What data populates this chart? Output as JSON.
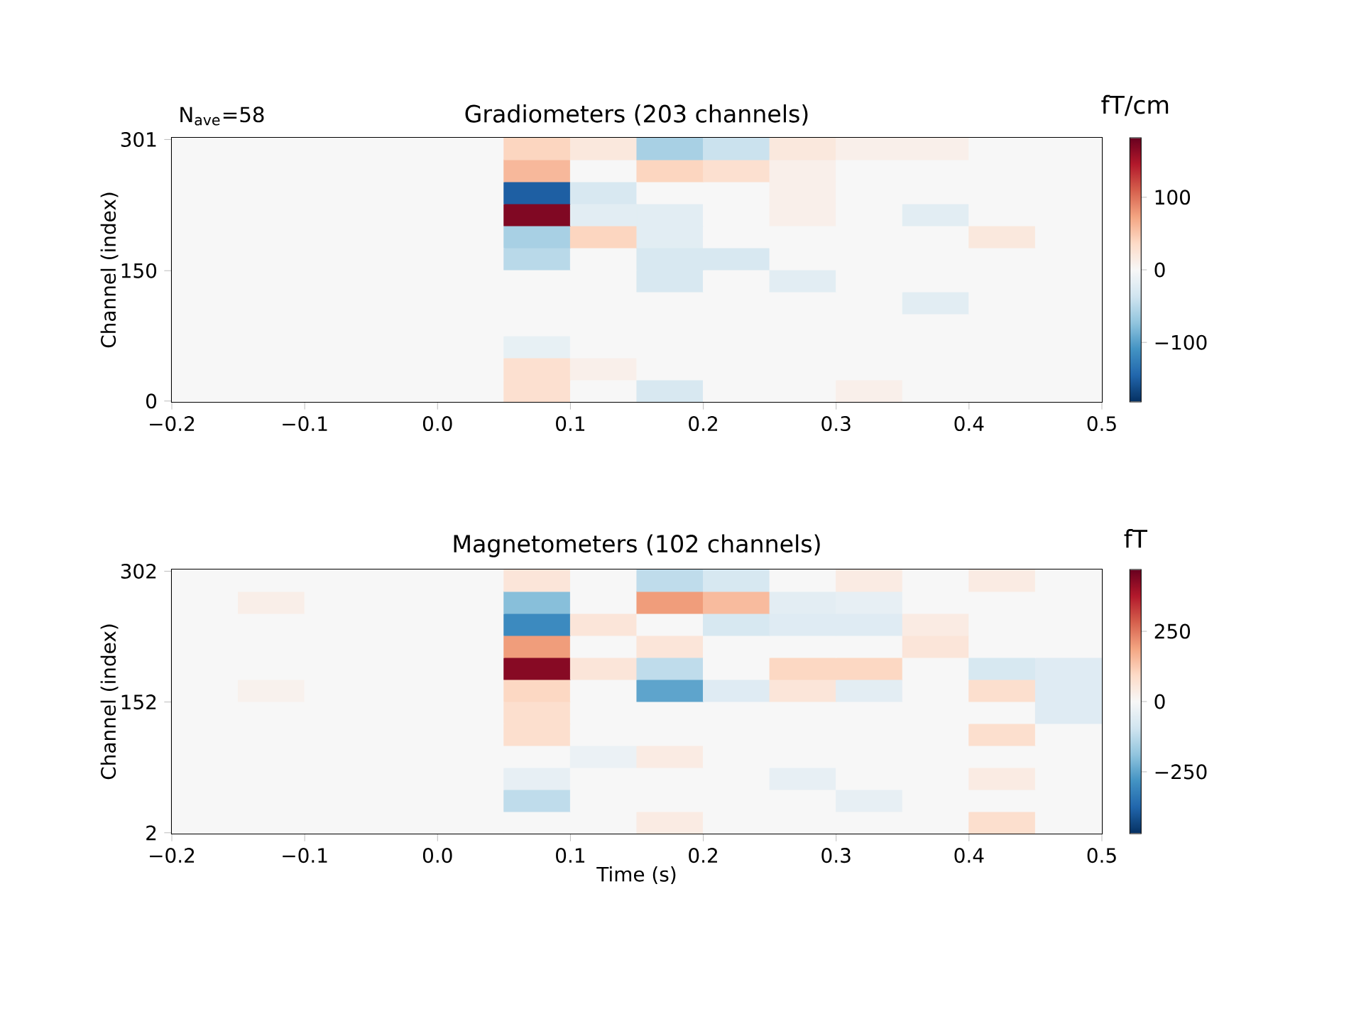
{
  "chart_data": [
    {
      "type": "heatmap",
      "title": "Gradiometers (203 channels)",
      "ylabel": "Channel (index)",
      "clabel": "fT/cm",
      "annotations": [
        "N$_{ave}$=58"
      ],
      "x": [
        -0.175,
        -0.125,
        -0.075,
        -0.025,
        0.025,
        0.075,
        0.125,
        0.175,
        0.225,
        0.275,
        0.325,
        0.375,
        0.425,
        0.475
      ],
      "xlim": [
        -0.2,
        0.5
      ],
      "xticks": [
        {
          "value": -0.2,
          "label": "−0.2"
        },
        {
          "value": -0.1,
          "label": "−0.1"
        },
        {
          "value": 0,
          "label": "0.0"
        },
        0.1,
        0.2,
        0.3,
        0.4,
        0.5
      ],
      "ylim": [
        -1,
        303
      ],
      "yticks": [
        0,
        150,
        301
      ],
      "clim": [
        -182,
        182
      ],
      "cticks": [
        {
          "value": -100,
          "label": "−100"
        },
        0,
        100
      ],
      "cells": [
        [
          0,
          0,
          0,
          0,
          0,
          40,
          20,
          -60,
          -40,
          20,
          10,
          10,
          0,
          0
        ],
        [
          0,
          0,
          0,
          0,
          0,
          60,
          0,
          40,
          30,
          10,
          0,
          0,
          0,
          0
        ],
        [
          0,
          0,
          0,
          0,
          0,
          -150,
          -30,
          0,
          0,
          10,
          0,
          0,
          0,
          0
        ],
        [
          0,
          0,
          0,
          0,
          0,
          170,
          -20,
          -20,
          0,
          10,
          0,
          -20,
          0,
          0
        ],
        [
          0,
          0,
          0,
          0,
          0,
          -60,
          40,
          -20,
          0,
          0,
          0,
          0,
          20,
          0
        ],
        [
          0,
          0,
          0,
          0,
          0,
          -50,
          0,
          -30,
          -30,
          0,
          0,
          0,
          0,
          0
        ],
        [
          0,
          0,
          0,
          0,
          0,
          0,
          0,
          -30,
          0,
          -20,
          0,
          0,
          0,
          0
        ],
        [
          0,
          0,
          0,
          0,
          0,
          0,
          0,
          0,
          0,
          0,
          0,
          -20,
          0,
          0
        ],
        [
          0,
          0,
          0,
          0,
          0,
          0,
          0,
          0,
          0,
          0,
          0,
          0,
          0,
          0
        ],
        [
          0,
          0,
          0,
          0,
          0,
          -15,
          0,
          0,
          0,
          0,
          0,
          0,
          0,
          0
        ],
        [
          0,
          0,
          0,
          0,
          0,
          30,
          10,
          0,
          0,
          0,
          0,
          0,
          0,
          0
        ],
        [
          0,
          0,
          0,
          0,
          0,
          30,
          0,
          -30,
          0,
          0,
          10,
          0,
          0,
          0
        ]
      ]
    },
    {
      "type": "heatmap",
      "title": "Magnetometers (102 channels)",
      "xlabel": "Time (s)",
      "ylabel": "Channel (index)",
      "clabel": "fT",
      "x": [
        -0.175,
        -0.125,
        -0.075,
        -0.025,
        0.025,
        0.075,
        0.125,
        0.175,
        0.225,
        0.275,
        0.325,
        0.375,
        0.425,
        0.475
      ],
      "xlim": [
        -0.2,
        0.5
      ],
      "xticks": [
        {
          "value": -0.2,
          "label": "−0.2"
        },
        {
          "value": -0.1,
          "label": "−0.1"
        },
        {
          "value": 0,
          "label": "0.0"
        },
        0.1,
        0.2,
        0.3,
        0.4,
        0.5
      ],
      "ylim": [
        1,
        304
      ],
      "yticks": [
        2,
        152,
        302
      ],
      "clim": [
        -470,
        470
      ],
      "cticks": [
        {
          "value": -250,
          "label": "−250"
        },
        0,
        250
      ],
      "cells": [
        [
          0,
          0,
          0,
          0,
          0,
          60,
          0,
          -120,
          -80,
          0,
          40,
          0,
          40,
          0
        ],
        [
          0,
          30,
          0,
          0,
          0,
          -200,
          0,
          200,
          150,
          -50,
          -40,
          0,
          0,
          0
        ],
        [
          0,
          0,
          0,
          0,
          0,
          -300,
          60,
          0,
          -80,
          -60,
          -60,
          40,
          0,
          0
        ],
        [
          0,
          0,
          0,
          0,
          0,
          200,
          0,
          60,
          0,
          0,
          0,
          60,
          0,
          0
        ],
        [
          0,
          0,
          0,
          0,
          0,
          430,
          60,
          -120,
          0,
          100,
          100,
          0,
          -80,
          -60
        ],
        [
          0,
          20,
          0,
          0,
          0,
          100,
          0,
          -250,
          -60,
          60,
          -50,
          0,
          80,
          -60
        ],
        [
          0,
          0,
          0,
          0,
          0,
          80,
          0,
          0,
          0,
          0,
          0,
          0,
          0,
          -60
        ],
        [
          0,
          0,
          0,
          0,
          0,
          80,
          0,
          0,
          0,
          0,
          0,
          0,
          80,
          0
        ],
        [
          0,
          0,
          0,
          0,
          0,
          0,
          -30,
          40,
          0,
          0,
          0,
          0,
          0,
          0
        ],
        [
          0,
          0,
          0,
          0,
          0,
          -40,
          0,
          0,
          0,
          -40,
          0,
          0,
          40,
          0
        ],
        [
          0,
          0,
          0,
          0,
          0,
          -120,
          0,
          0,
          0,
          0,
          -40,
          0,
          0,
          0
        ],
        [
          0,
          0,
          0,
          0,
          0,
          0,
          0,
          40,
          0,
          0,
          0,
          0,
          80,
          0
        ]
      ]
    }
  ]
}
